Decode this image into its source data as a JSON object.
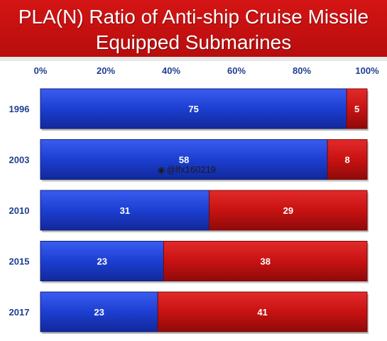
{
  "title": {
    "line1": "PLA(N) Ratio of Anti-ship Cruise Missile",
    "line2": "Equipped Submarines"
  },
  "watermark": "@lfx160219",
  "colors": {
    "series_blue": "#1c3fd1",
    "series_red": "#c81212",
    "title_bg": "#c51010",
    "tick_text": "#1f3f8f"
  },
  "chart_data": {
    "type": "bar",
    "orientation": "horizontal",
    "stacked": true,
    "normalized": true,
    "categories": [
      "1996",
      "2003",
      "2010",
      "2015",
      "2017"
    ],
    "series": [
      {
        "values": [
          75,
          58,
          31,
          23,
          23
        ]
      },
      {
        "values": [
          5,
          8,
          29,
          38,
          41
        ]
      }
    ],
    "xticks": [
      "0%",
      "20%",
      "40%",
      "60%",
      "80%",
      "100%"
    ],
    "xlim": [
      0,
      100
    ],
    "axis_position": "top",
    "grid": false,
    "legend": "none"
  }
}
